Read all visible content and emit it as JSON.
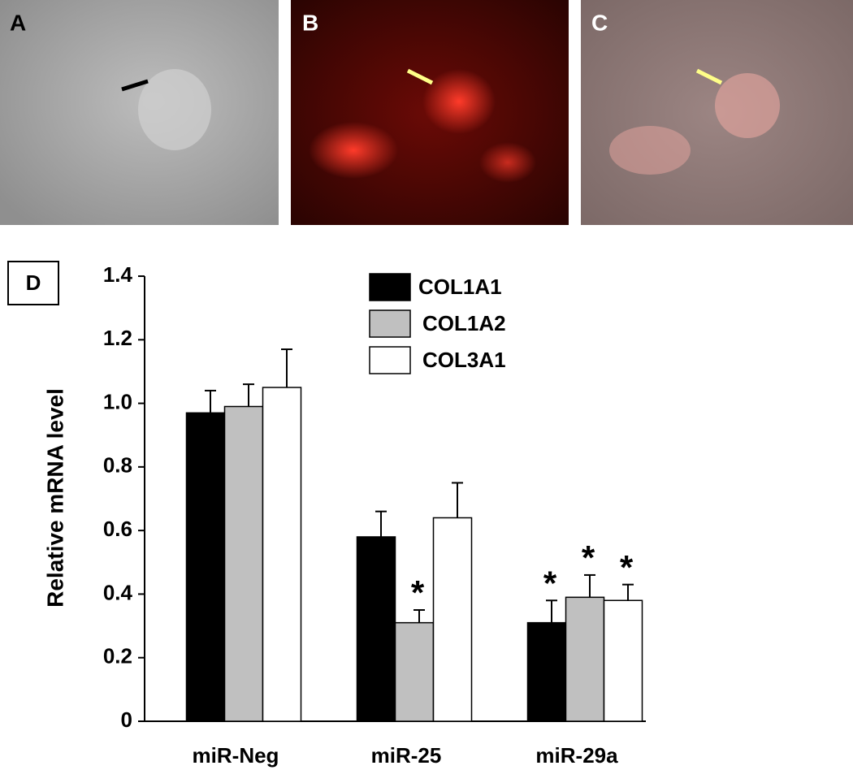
{
  "panels": [
    {
      "label": "A"
    },
    {
      "label": "B"
    },
    {
      "label": "C"
    }
  ],
  "chart_data": {
    "type": "bar",
    "panel_label": "D",
    "ylabel": "Relative mRNA level",
    "categories": [
      "miR-Neg",
      "miR-25",
      "miR-29a"
    ],
    "ylim": [
      0,
      1.4
    ],
    "yticks": [
      0,
      0.2,
      0.4,
      0.6,
      0.8,
      {
        "value": 1,
        "label": "1.0"
      },
      1.2,
      1.4
    ],
    "series": [
      {
        "name": "COL1A1",
        "color": "#000000",
        "values": [
          0.97,
          0.58,
          0.31
        ],
        "errors": [
          0.07,
          0.08,
          0.07
        ],
        "annotations": [
          null,
          null,
          "*"
        ]
      },
      {
        "name": "COL1A2",
        "color": "#c0c0c0",
        "values": [
          0.99,
          0.31,
          0.39
        ],
        "errors": [
          0.07,
          0.04,
          0.07
        ],
        "annotations": [
          null,
          "*",
          "*"
        ]
      },
      {
        "name": "COL3A1",
        "color": "#ffffff",
        "values": [
          1.05,
          0.64,
          0.38
        ],
        "errors": [
          0.12,
          0.11,
          0.05
        ],
        "annotations": [
          null,
          null,
          "*"
        ]
      }
    ]
  }
}
